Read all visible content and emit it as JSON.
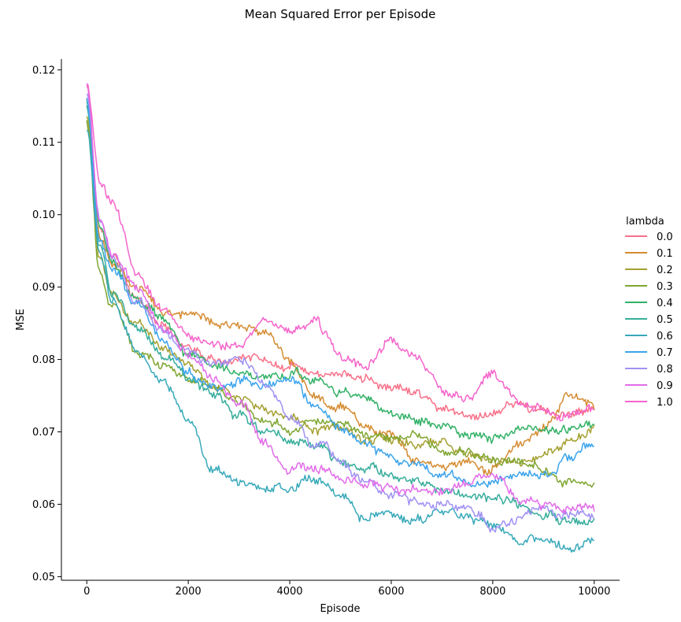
{
  "figure_title": "Mean Squared Error per Episode",
  "chart_data": {
    "type": "line",
    "title": "Mean Squared Error per Episode",
    "xlabel": "Episode",
    "ylabel": "MSE",
    "xlim": [
      -500,
      10500
    ],
    "ylim": [
      0.0495,
      0.1215
    ],
    "xticks": [
      0,
      2000,
      4000,
      6000,
      8000,
      10000
    ],
    "xtick_labels": [
      "0",
      "2000",
      "4000",
      "6000",
      "8000",
      "10000"
    ],
    "yticks": [
      0.05,
      0.06,
      0.07,
      0.08,
      0.09,
      0.1,
      0.11,
      0.12
    ],
    "ytick_labels": [
      "0.05",
      "0.06",
      "0.07",
      "0.08",
      "0.09",
      "0.10",
      "0.11",
      "0.12"
    ],
    "grid": false,
    "legend": {
      "title": "lambda",
      "placement": "right"
    },
    "x": [
      0,
      250,
      500,
      1000,
      1500,
      2000,
      2500,
      3000,
      3500,
      4000,
      4500,
      5000,
      5500,
      6000,
      6500,
      7000,
      7500,
      8000,
      8500,
      9000,
      9500,
      10000
    ],
    "series": [
      {
        "name": "0.0",
        "color": "#f77189",
        "values": [
          0.118,
          0.099,
          0.094,
          0.088,
          0.085,
          0.082,
          0.08,
          0.08,
          0.08,
          0.079,
          0.078,
          0.078,
          0.077,
          0.076,
          0.075,
          0.073,
          0.072,
          0.073,
          0.074,
          0.073,
          0.072,
          0.073
        ]
      },
      {
        "name": "0.1",
        "color": "#d58c32",
        "values": [
          0.116,
          0.097,
          0.093,
          0.09,
          0.087,
          0.086,
          0.085,
          0.085,
          0.084,
          0.08,
          0.075,
          0.073,
          0.071,
          0.07,
          0.066,
          0.065,
          0.066,
          0.065,
          0.068,
          0.071,
          0.075,
          0.073
        ]
      },
      {
        "name": "0.2",
        "color": "#a4a031",
        "values": [
          0.114,
          0.094,
          0.089,
          0.085,
          0.082,
          0.079,
          0.076,
          0.075,
          0.073,
          0.072,
          0.07,
          0.071,
          0.069,
          0.069,
          0.068,
          0.068,
          0.067,
          0.066,
          0.066,
          0.067,
          0.069,
          0.071
        ]
      },
      {
        "name": "0.3",
        "color": "#7fa631",
        "values": [
          0.113,
          0.092,
          0.087,
          0.081,
          0.079,
          0.077,
          0.076,
          0.074,
          0.071,
          0.07,
          0.071,
          0.071,
          0.07,
          0.069,
          0.07,
          0.068,
          0.067,
          0.066,
          0.066,
          0.065,
          0.063,
          0.063
        ]
      },
      {
        "name": "0.4",
        "color": "#32b166",
        "values": [
          0.116,
          0.098,
          0.093,
          0.088,
          0.085,
          0.081,
          0.079,
          0.078,
          0.078,
          0.078,
          0.077,
          0.075,
          0.074,
          0.072,
          0.071,
          0.071,
          0.07,
          0.069,
          0.07,
          0.07,
          0.07,
          0.071
        ]
      },
      {
        "name": "0.5",
        "color": "#36ad9b",
        "values": [
          0.115,
          0.096,
          0.089,
          0.084,
          0.08,
          0.077,
          0.075,
          0.072,
          0.07,
          0.069,
          0.068,
          0.066,
          0.065,
          0.064,
          0.063,
          0.062,
          0.061,
          0.061,
          0.06,
          0.059,
          0.058,
          0.058
        ]
      },
      {
        "name": "0.6",
        "color": "#38a9ba",
        "values": [
          0.112,
          0.095,
          0.088,
          0.082,
          0.077,
          0.072,
          0.065,
          0.063,
          0.062,
          0.062,
          0.063,
          0.061,
          0.058,
          0.059,
          0.058,
          0.059,
          0.058,
          0.057,
          0.055,
          0.055,
          0.054,
          0.055
        ]
      },
      {
        "name": "0.7",
        "color": "#3ba3ec",
        "values": [
          0.116,
          0.097,
          0.093,
          0.088,
          0.082,
          0.078,
          0.076,
          0.077,
          0.076,
          0.077,
          0.073,
          0.07,
          0.068,
          0.067,
          0.065,
          0.064,
          0.063,
          0.063,
          0.064,
          0.064,
          0.066,
          0.068
        ]
      },
      {
        "name": "0.8",
        "color": "#9f91f3",
        "values": [
          0.117,
          0.099,
          0.094,
          0.088,
          0.084,
          0.081,
          0.079,
          0.08,
          0.077,
          0.072,
          0.068,
          0.066,
          0.063,
          0.061,
          0.06,
          0.06,
          0.059,
          0.057,
          0.058,
          0.059,
          0.059,
          0.058
        ]
      },
      {
        "name": "0.9",
        "color": "#e16ce9",
        "values": [
          0.118,
          0.1,
          0.095,
          0.09,
          0.084,
          0.081,
          0.078,
          0.074,
          0.069,
          0.065,
          0.065,
          0.064,
          0.063,
          0.062,
          0.062,
          0.062,
          0.063,
          0.064,
          0.061,
          0.06,
          0.059,
          0.059
        ]
      },
      {
        "name": "1.0",
        "color": "#f565cc",
        "values": [
          0.118,
          0.105,
          0.102,
          0.092,
          0.087,
          0.084,
          0.082,
          0.082,
          0.085,
          0.084,
          0.085,
          0.08,
          0.079,
          0.082,
          0.08,
          0.076,
          0.075,
          0.078,
          0.074,
          0.073,
          0.072,
          0.073
        ]
      }
    ]
  }
}
